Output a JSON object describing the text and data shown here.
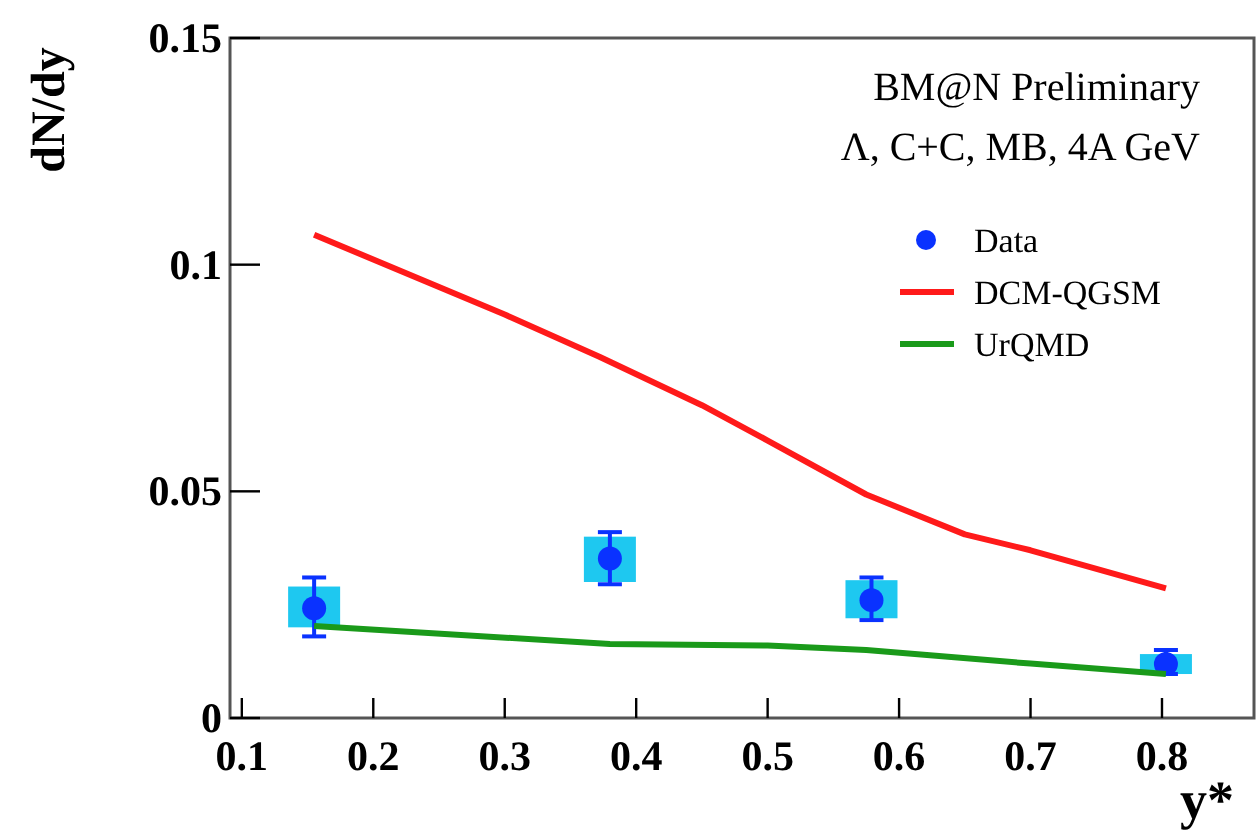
{
  "chart_data": {
    "type": "scatter",
    "xlabel": "y*",
    "ylabel": "dN/dy",
    "annotations": [
      "BM@N Preliminary",
      "Λ, C+C, MB, 4A GeV"
    ],
    "xlim": [
      0.091,
      0.87
    ],
    "ylim": [
      0,
      0.15
    ],
    "xticks": [
      0.1,
      0.2,
      0.3,
      0.4,
      0.5,
      0.6,
      0.7,
      0.8
    ],
    "yticks": [
      0,
      0.05,
      0.1,
      0.15
    ],
    "grid": false,
    "legend": "top right",
    "series": [
      {
        "type": "bar",
        "color": "#1ec8f0",
        "x": [
          0.155,
          0.38,
          0.579,
          0.803
        ],
        "base": [
          0.02,
          0.03,
          0.022,
          0.0097
        ],
        "values": [
          0.009,
          0.01,
          0.0084,
          0.0044
        ]
      },
      {
        "name": "Data",
        "marker": "circle",
        "color": "#0a32ff",
        "x": [
          0.155,
          0.38,
          0.579,
          0.803
        ],
        "values": [
          0.0242,
          0.0352,
          0.026,
          0.0119
        ],
        "errors": [
          [
            0.018,
            0.031
          ],
          [
            0.0295,
            0.041
          ],
          [
            0.0216,
            0.031
          ],
          [
            0.0097,
            0.015
          ]
        ]
      },
      {
        "name": "DCM-QGSM",
        "type": "line",
        "color": "#ff1a1a",
        "line_style": "solid",
        "x": [
          0.155,
          0.3,
          0.372,
          0.45,
          0.5,
          0.575,
          0.65,
          0.7,
          0.803
        ],
        "values": [
          0.1066,
          0.089,
          0.0797,
          0.069,
          0.0612,
          0.0493,
          0.0405,
          0.037,
          0.0286
        ]
      },
      {
        "name": "UrQMD",
        "type": "line",
        "color": "#1a9a1a",
        "line_style": "solid",
        "x": [
          0.155,
          0.38,
          0.5,
          0.575,
          0.7,
          0.803
        ],
        "values": [
          0.0203,
          0.0163,
          0.016,
          0.015,
          0.012,
          0.0097
        ]
      }
    ]
  }
}
